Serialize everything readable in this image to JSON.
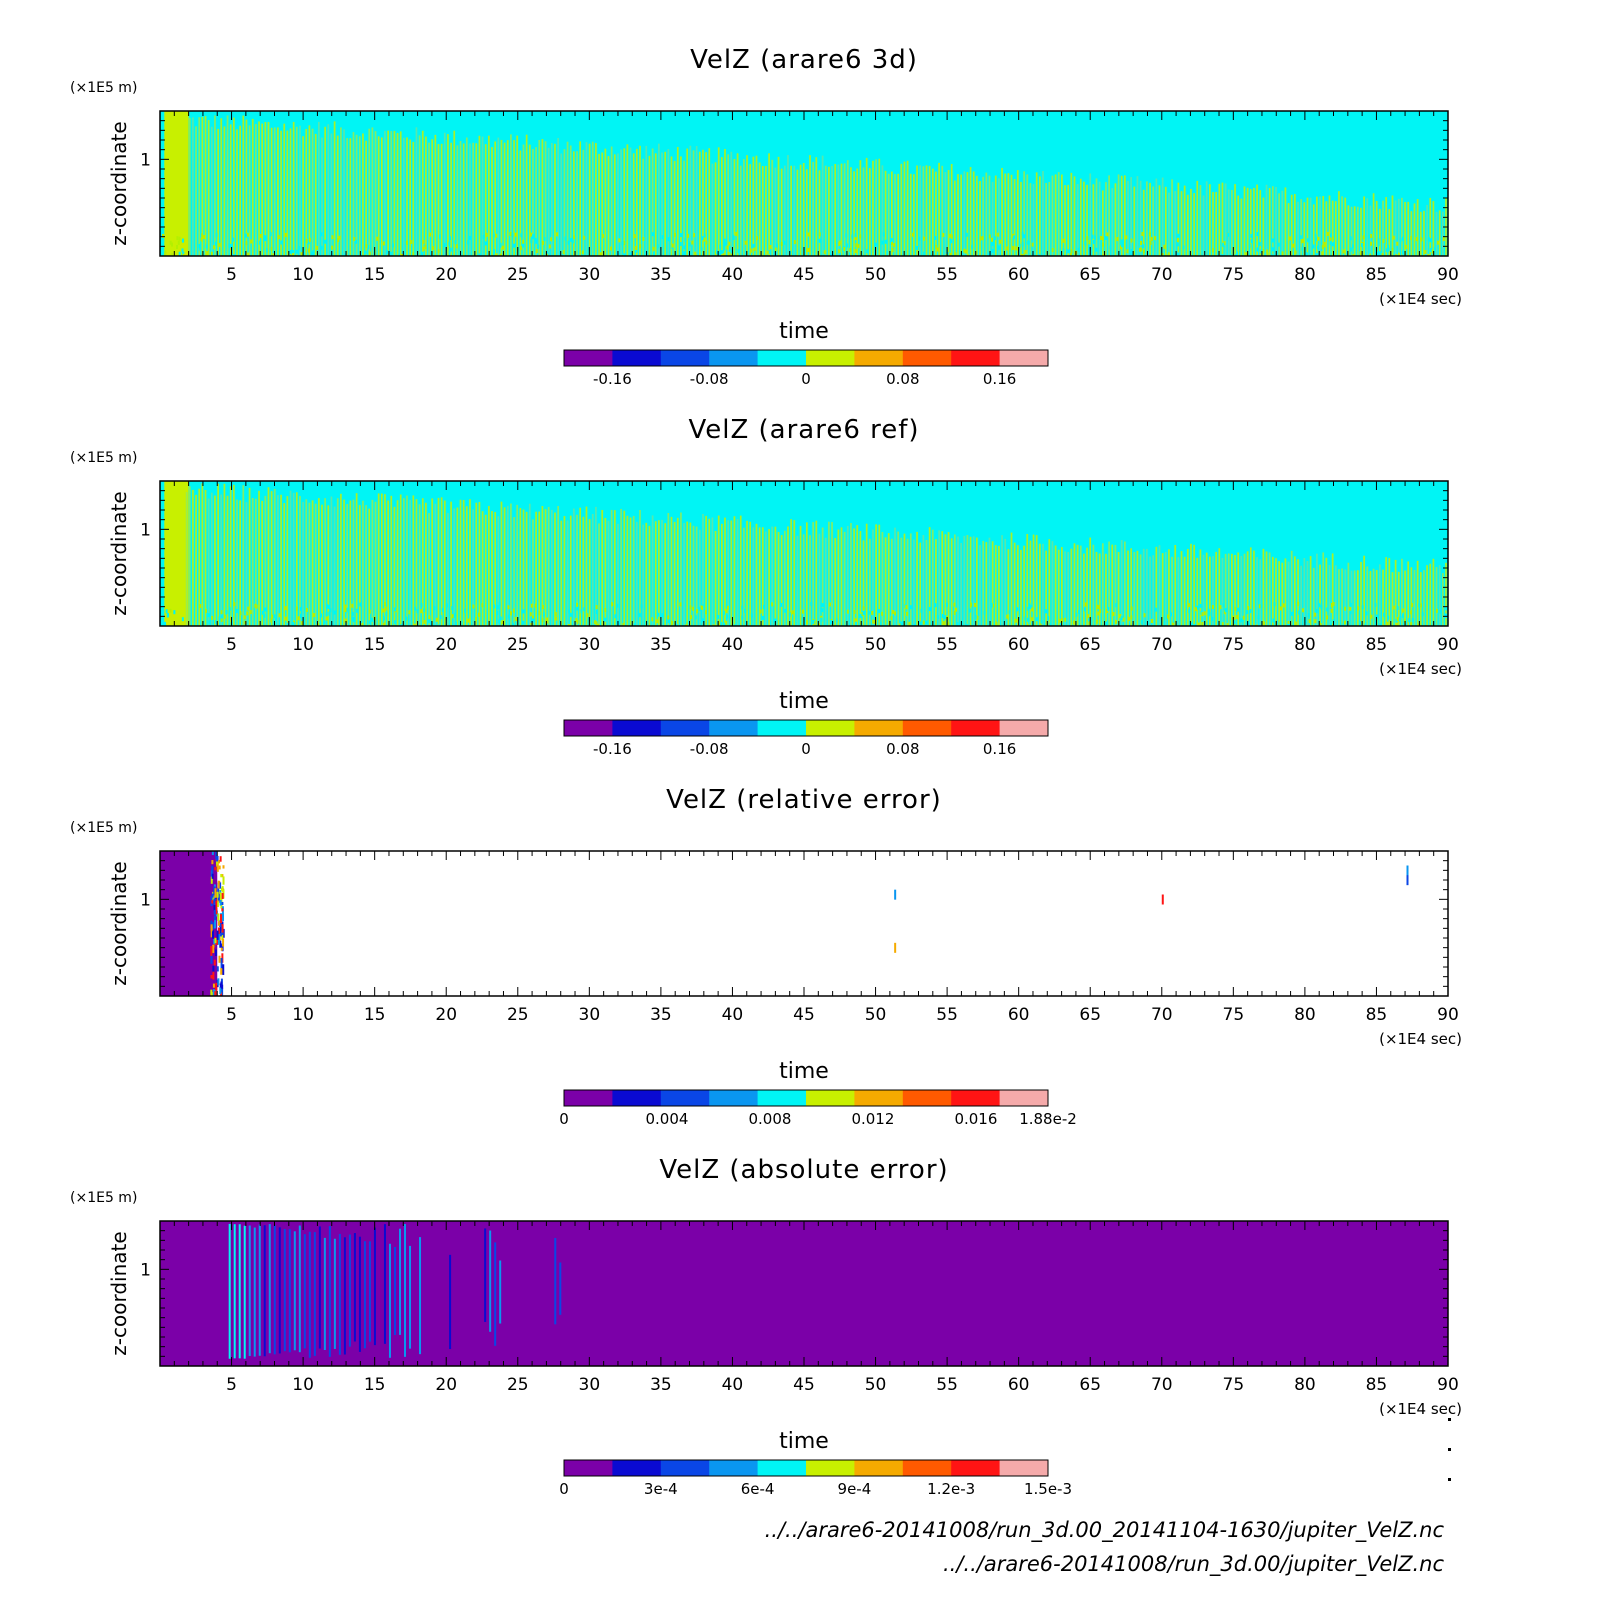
{
  "chart_data": [
    {
      "type": "heatmap",
      "title": "VelZ (arare6 3d)",
      "ylabel": "z-coordinate",
      "yunit": "(×1E5 m)",
      "xlabel": "time",
      "xunit": "(×1E4 sec)",
      "xlim": [
        0,
        90
      ],
      "ylim": [
        0,
        1.5
      ],
      "xticks": [
        "5",
        "10",
        "15",
        "20",
        "25",
        "30",
        "35",
        "40",
        "45",
        "50",
        "55",
        "60",
        "65",
        "70",
        "75",
        "80",
        "85",
        "90"
      ],
      "yticks": [
        "1"
      ],
      "pattern": "field",
      "reach_start": 0.95,
      "reach_end": 0.35,
      "colorbar": {
        "colors": [
          "#7b00a8",
          "#0a0ad2",
          "#0a46e6",
          "#0a96f0",
          "#00f5f5",
          "#c8f000",
          "#f5aa00",
          "#ff5a00",
          "#ff1414",
          "#f5aaaa"
        ],
        "labels": [
          "-0.16",
          "-0.08",
          "0",
          "0.08",
          "0.16"
        ],
        "label_positions": [
          -0.16,
          -0.08,
          0,
          0.08,
          0.16
        ],
        "range": [
          -0.2,
          0.2
        ]
      }
    },
    {
      "type": "heatmap",
      "title": "VelZ (arare6 ref)",
      "ylabel": "z-coordinate",
      "yunit": "(×1E5 m)",
      "xlabel": "time",
      "xunit": "(×1E4 sec)",
      "xlim": [
        0,
        90
      ],
      "ylim": [
        0,
        1.5
      ],
      "xticks": [
        "5",
        "10",
        "15",
        "20",
        "25",
        "30",
        "35",
        "40",
        "45",
        "50",
        "55",
        "60",
        "65",
        "70",
        "75",
        "80",
        "85",
        "90"
      ],
      "yticks": [
        "1"
      ],
      "pattern": "field",
      "reach_start": 0.95,
      "reach_end": 0.4,
      "colorbar": {
        "colors": [
          "#7b00a8",
          "#0a0ad2",
          "#0a46e6",
          "#0a96f0",
          "#00f5f5",
          "#c8f000",
          "#f5aa00",
          "#ff5a00",
          "#ff1414",
          "#f5aaaa"
        ],
        "labels": [
          "-0.16",
          "-0.08",
          "0",
          "0.08",
          "0.16"
        ],
        "label_positions": [
          -0.16,
          -0.08,
          0,
          0.08,
          0.16
        ],
        "range": [
          -0.2,
          0.2
        ]
      }
    },
    {
      "type": "heatmap",
      "title": "VelZ (relative error)",
      "ylabel": "z-coordinate",
      "yunit": "(×1E5 m)",
      "xlabel": "time",
      "xunit": "(×1E4 sec)",
      "xlim": [
        0,
        90
      ],
      "ylim": [
        0,
        1.5
      ],
      "xticks": [
        "5",
        "10",
        "15",
        "20",
        "25",
        "30",
        "35",
        "40",
        "45",
        "50",
        "55",
        "60",
        "65",
        "70",
        "75",
        "80",
        "85",
        "90"
      ],
      "yticks": [
        "1"
      ],
      "pattern": "relative",
      "error_block_end_x": 4,
      "colorbar": {
        "colors": [
          "#7b00a8",
          "#0a0ad2",
          "#0a46e6",
          "#0a96f0",
          "#00f5f5",
          "#c8f000",
          "#f5aa00",
          "#ff5a00",
          "#ff1414",
          "#f5aaaa"
        ],
        "labels": [
          "0",
          "0.004",
          "0.008",
          "0.012",
          "0.016",
          "1.88e-2"
        ],
        "label_positions": [
          0,
          0.004,
          0.008,
          0.012,
          0.016,
          0.0188
        ],
        "range": [
          0,
          0.0188
        ]
      }
    },
    {
      "type": "heatmap",
      "title": "VelZ (absolute error)",
      "ylabel": "z-coordinate",
      "yunit": "(×1E5 m)",
      "xlabel": "time",
      "xunit": "(×1E4 sec)",
      "xlim": [
        0,
        90
      ],
      "ylim": [
        0,
        1.5
      ],
      "xticks": [
        "5",
        "10",
        "15",
        "20",
        "25",
        "30",
        "35",
        "40",
        "45",
        "50",
        "55",
        "60",
        "65",
        "70",
        "75",
        "80",
        "85",
        "90"
      ],
      "yticks": [
        "1"
      ],
      "pattern": "absolute",
      "streak_start_x": 4.8,
      "streak_end_x": 28,
      "colorbar": {
        "colors": [
          "#7b00a8",
          "#0a0ad2",
          "#0a46e6",
          "#0a96f0",
          "#00f5f5",
          "#c8f000",
          "#f5aa00",
          "#ff5a00",
          "#ff1414",
          "#f5aaaa"
        ],
        "labels": [
          "0",
          "3e-4",
          "6e-4",
          "9e-4",
          "1.2e-3",
          "1.5e-3"
        ],
        "label_positions": [
          0,
          0.0003,
          0.0006,
          0.0009,
          0.0012,
          0.0015
        ],
        "range": [
          0,
          0.0015
        ]
      }
    }
  ],
  "footer": {
    "line1": "../../arare6-20141008/run_3d.00_20141104-1630/jupiter_VelZ.nc",
    "line2": "../../arare6-20141008/run_3d.00/jupiter_VelZ.nc"
  }
}
